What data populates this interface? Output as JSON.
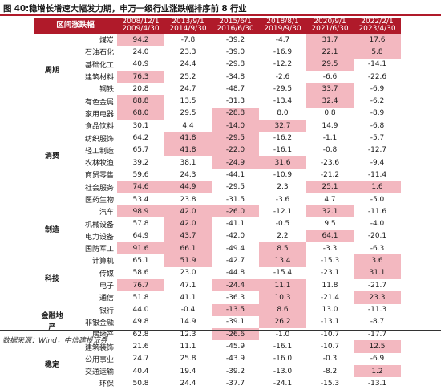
{
  "title": "图 40:稳增长增速大幅发力期，申万一级行业涨跌幅排序前 8 行业",
  "header_label": "区间涨跌幅",
  "periods": [
    {
      "start": "2008/12/1",
      "end": "2009/4/30"
    },
    {
      "start": "2013/9/1",
      "end": "2014/9/30"
    },
    {
      "start": "2015/6/1",
      "end": "2016/6/30"
    },
    {
      "start": "2018/8/1",
      "end": "2019/9/30"
    },
    {
      "start": "2020/9/1",
      "end": "2021/6/30"
    },
    {
      "start": "2022/2/1",
      "end": "2023/4/30"
    }
  ],
  "groups": [
    {
      "label": "周期",
      "rows": [
        {
          "name": "煤炭",
          "values": [
            "94.2",
            "-7.8",
            "-39.2",
            "-4.7",
            "31.7",
            "17.6"
          ],
          "hl": [
            true,
            false,
            false,
            false,
            true,
            true
          ]
        },
        {
          "name": "石油石化",
          "values": [
            "24.0",
            "23.3",
            "-39.0",
            "-16.9",
            "22.1",
            "5.8"
          ],
          "hl": [
            false,
            false,
            false,
            false,
            true,
            true
          ]
        },
        {
          "name": "基础化工",
          "values": [
            "40.9",
            "24.4",
            "-29.8",
            "-12.2",
            "29.5",
            "-14.1"
          ],
          "hl": [
            false,
            false,
            false,
            false,
            true,
            false
          ]
        },
        {
          "name": "建筑材料",
          "values": [
            "76.3",
            "25.2",
            "-34.8",
            "-2.6",
            "-6.6",
            "-22.6"
          ],
          "hl": [
            true,
            false,
            false,
            false,
            false,
            false
          ]
        },
        {
          "name": "钢铁",
          "values": [
            "20.8",
            "24.7",
            "-48.7",
            "-29.5",
            "33.7",
            "-6.9"
          ],
          "hl": [
            false,
            false,
            false,
            false,
            true,
            false
          ]
        },
        {
          "name": "有色金属",
          "values": [
            "88.8",
            "13.5",
            "-31.3",
            "-13.4",
            "32.4",
            "-6.2"
          ],
          "hl": [
            true,
            false,
            false,
            false,
            true,
            false
          ]
        }
      ]
    },
    {
      "label": "消费",
      "rows": [
        {
          "name": "家用电器",
          "values": [
            "68.0",
            "29.5",
            "-28.8",
            "8.0",
            "0.8",
            "-8.9"
          ],
          "hl": [
            true,
            false,
            true,
            false,
            false,
            false
          ]
        },
        {
          "name": "食品饮料",
          "values": [
            "30.1",
            "4.4",
            "-14.0",
            "32.7",
            "14.9",
            "-6.8"
          ],
          "hl": [
            false,
            false,
            true,
            true,
            false,
            false
          ]
        },
        {
          "name": "纺织服饰",
          "values": [
            "64.2",
            "41.8",
            "-29.5",
            "-16.2",
            "-1.1",
            "-5.7"
          ],
          "hl": [
            false,
            true,
            true,
            false,
            false,
            false
          ]
        },
        {
          "name": "轻工制造",
          "values": [
            "65.7",
            "41.8",
            "-22.0",
            "-16.1",
            "-0.8",
            "-12.7"
          ],
          "hl": [
            false,
            true,
            true,
            false,
            false,
            false
          ]
        },
        {
          "name": "农林牧渔",
          "values": [
            "39.2",
            "38.1",
            "-24.9",
            "31.6",
            "-23.6",
            "-9.4"
          ],
          "hl": [
            false,
            false,
            true,
            true,
            false,
            false
          ]
        },
        {
          "name": "商贸零售",
          "values": [
            "59.6",
            "24.3",
            "-44.1",
            "-10.9",
            "-21.2",
            "-11.4"
          ],
          "hl": [
            false,
            false,
            false,
            false,
            false,
            false
          ]
        },
        {
          "name": "社会服务",
          "values": [
            "74.6",
            "44.9",
            "-29.5",
            "2.3",
            "25.1",
            "1.6"
          ],
          "hl": [
            true,
            true,
            false,
            false,
            true,
            true
          ]
        },
        {
          "name": "医药生物",
          "values": [
            "53.4",
            "23.8",
            "-31.5",
            "-3.6",
            "4.7",
            "-5.0"
          ],
          "hl": [
            false,
            false,
            false,
            false,
            false,
            false
          ]
        }
      ]
    },
    {
      "label": "制造",
      "rows": [
        {
          "name": "汽车",
          "values": [
            "98.9",
            "42.0",
            "-26.0",
            "-12.1",
            "32.1",
            "-11.6"
          ],
          "hl": [
            true,
            true,
            true,
            false,
            true,
            false
          ]
        },
        {
          "name": "机械设备",
          "values": [
            "57.8",
            "42.0",
            "-41.1",
            "-0.5",
            "9.5",
            "-4.0"
          ],
          "hl": [
            false,
            true,
            false,
            false,
            false,
            false
          ]
        },
        {
          "name": "电力设备",
          "values": [
            "64.9",
            "43.7",
            "-42.0",
            "2.2",
            "64.1",
            "-20.1"
          ],
          "hl": [
            false,
            true,
            false,
            false,
            true,
            false
          ]
        },
        {
          "name": "国防军工",
          "values": [
            "91.6",
            "66.1",
            "-49.4",
            "8.5",
            "-3.3",
            "-6.3"
          ],
          "hl": [
            true,
            true,
            false,
            true,
            false,
            false
          ]
        }
      ]
    },
    {
      "label": "科技",
      "rows": [
        {
          "name": "计算机",
          "values": [
            "65.1",
            "51.9",
            "-42.7",
            "13.4",
            "-15.3",
            "3.6"
          ],
          "hl": [
            false,
            true,
            false,
            true,
            false,
            true
          ]
        },
        {
          "name": "传媒",
          "values": [
            "58.6",
            "23.0",
            "-44.8",
            "-15.4",
            "-23.1",
            "31.1"
          ],
          "hl": [
            false,
            false,
            false,
            false,
            false,
            true
          ]
        },
        {
          "name": "电子",
          "values": [
            "76.7",
            "47.1",
            "-24.4",
            "11.1",
            "11.8",
            "-21.7"
          ],
          "hl": [
            true,
            false,
            true,
            true,
            false,
            false
          ]
        },
        {
          "name": "通信",
          "values": [
            "51.8",
            "41.1",
            "-36.3",
            "10.3",
            "-21.4",
            "23.3"
          ],
          "hl": [
            false,
            false,
            false,
            true,
            false,
            true
          ]
        }
      ]
    },
    {
      "label": "金融地产",
      "rows": [
        {
          "name": "银行",
          "values": [
            "44.0",
            "-0.4",
            "-13.5",
            "8.6",
            "13.0",
            "-11.3"
          ],
          "hl": [
            false,
            false,
            true,
            true,
            false,
            false
          ]
        },
        {
          "name": "非银金融",
          "values": [
            "49.8",
            "14.9",
            "-39.1",
            "26.2",
            "-13.1",
            "-8.7"
          ],
          "hl": [
            false,
            false,
            false,
            true,
            false,
            false
          ]
        },
        {
          "name": "房地产",
          "values": [
            "62.8",
            "12.3",
            "-26.6",
            "-1.0",
            "-10.7",
            "-17.7"
          ],
          "hl": [
            false,
            false,
            true,
            false,
            false,
            false
          ]
        }
      ]
    },
    {
      "label": "稳定",
      "rows": [
        {
          "name": "建筑装饰",
          "values": [
            "21.6",
            "11.1",
            "-45.9",
            "-16.1",
            "-10.7",
            "12.5"
          ],
          "hl": [
            false,
            false,
            false,
            false,
            false,
            true
          ]
        },
        {
          "name": "公用事业",
          "values": [
            "24.7",
            "25.8",
            "-43.9",
            "-16.0",
            "-0.3",
            "-6.9"
          ],
          "hl": [
            false,
            false,
            false,
            false,
            false,
            false
          ]
        },
        {
          "name": "交通运输",
          "values": [
            "40.4",
            "19.4",
            "-39.2",
            "-13.0",
            "-8.2",
            "1.2"
          ],
          "hl": [
            false,
            false,
            false,
            false,
            false,
            true
          ]
        },
        {
          "name": "环保",
          "values": [
            "50.8",
            "24.4",
            "-37.7",
            "-24.1",
            "-15.3",
            "-13.1"
          ],
          "hl": [
            false,
            false,
            false,
            false,
            false,
            false
          ]
        }
      ]
    }
  ],
  "source": "数据来源：Wind，中信建投证券",
  "colors": {
    "header_red": "#b01a2a",
    "highlight_pink": "#f3b8c0"
  }
}
